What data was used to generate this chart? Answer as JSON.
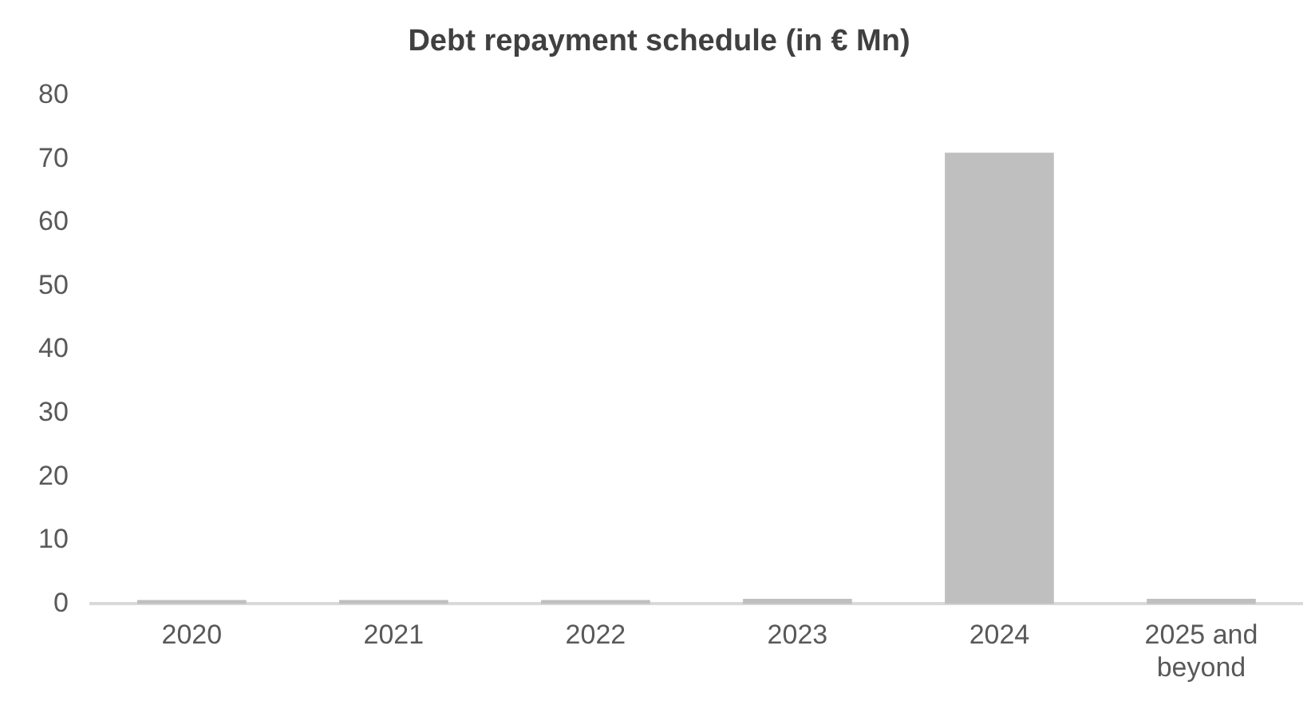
{
  "chart_data": {
    "type": "bar",
    "title": "Debt repayment schedule (in € Mn)",
    "categories": [
      "2020",
      "2021",
      "2022",
      "2023",
      "2024",
      "2025 and beyond"
    ],
    "values": [
      0.6,
      0.6,
      0.6,
      0.8,
      71,
      0.8
    ],
    "color": "#bfbfbf",
    "ylim": [
      0,
      80
    ],
    "yticks": [
      0,
      10,
      20,
      30,
      40,
      50,
      60,
      70,
      80
    ],
    "grid": false,
    "legend": false
  }
}
